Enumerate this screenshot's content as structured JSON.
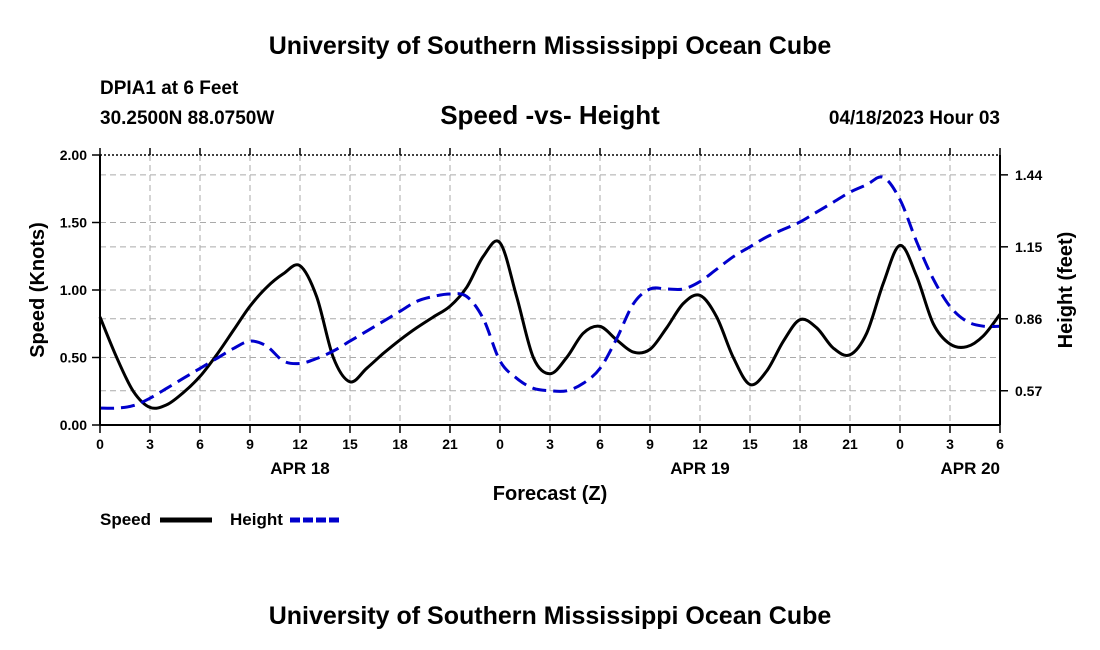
{
  "header": {
    "title": "University of Southern Mississippi Ocean Cube",
    "station": "DPIA1 at 6 Feet",
    "coords": "30.2500N  88.0750W",
    "subtitle": "Speed -vs- Height",
    "datetime": "04/18/2023 Hour 03"
  },
  "footer": {
    "title": "University of Southern Mississippi Ocean Cube"
  },
  "legend": {
    "speed_label": "Speed",
    "height_label": "Height"
  },
  "colors": {
    "speed": "#000000",
    "height": "#0000cc",
    "grid": "#aaaaaa"
  },
  "chart_data": {
    "type": "line",
    "title": "Speed -vs- Height",
    "xlabel": "Forecast (Z)",
    "ylabel": "Speed (Knots)",
    "y2label": "Height (feet)",
    "xlim": [
      0,
      54
    ],
    "x_ticks": [
      0,
      3,
      6,
      9,
      12,
      15,
      18,
      21,
      24,
      27,
      30,
      33,
      36,
      39,
      42,
      45,
      48,
      51,
      54
    ],
    "x_tick_labels": [
      "0",
      "3",
      "6",
      "9",
      "12",
      "15",
      "18",
      "21",
      "0",
      "3",
      "6",
      "9",
      "12",
      "15",
      "18",
      "21",
      "0",
      "3",
      "6"
    ],
    "date_labels": [
      {
        "x": 12,
        "label": "APR 18"
      },
      {
        "x": 36,
        "label": "APR 19"
      },
      {
        "x": 54,
        "label": "APR 20"
      }
    ],
    "ylim": [
      0,
      2.0
    ],
    "y_ticks": [
      0,
      0.5,
      1.0,
      1.5,
      2.0
    ],
    "y_tick_labels": [
      "0.00",
      "0.50",
      "1.00",
      "1.50",
      "2.00"
    ],
    "y2lim": [
      0.432,
      1.52
    ],
    "y2_ticks": [
      0.57,
      0.86,
      1.15,
      1.44
    ],
    "y2_tick_labels": [
      "0.57",
      "0.86",
      "1.15",
      "1.44"
    ],
    "series": [
      {
        "name": "Speed",
        "axis": "left",
        "style": "solid",
        "x": [
          0,
          1,
          2,
          3,
          4,
          5,
          6,
          7,
          8,
          9,
          10,
          11,
          12,
          13,
          14,
          15,
          16,
          17,
          18,
          19,
          20,
          21,
          22,
          23,
          24,
          25,
          26,
          27,
          28,
          29,
          30,
          31,
          32,
          33,
          34,
          35,
          36,
          37,
          38,
          39,
          40,
          41,
          42,
          43,
          44,
          45,
          46,
          47,
          48,
          49,
          50,
          51,
          52,
          53,
          54
        ],
        "values": [
          0.8,
          0.5,
          0.25,
          0.13,
          0.15,
          0.24,
          0.36,
          0.52,
          0.7,
          0.88,
          1.02,
          1.12,
          1.18,
          0.95,
          0.5,
          0.32,
          0.42,
          0.53,
          0.63,
          0.72,
          0.8,
          0.88,
          1.02,
          1.25,
          1.35,
          0.95,
          0.5,
          0.38,
          0.5,
          0.68,
          0.73,
          0.63,
          0.54,
          0.56,
          0.72,
          0.9,
          0.96,
          0.8,
          0.5,
          0.3,
          0.4,
          0.62,
          0.78,
          0.72,
          0.57,
          0.52,
          0.68,
          1.05,
          1.33,
          1.1,
          0.75,
          0.6,
          0.58,
          0.66,
          0.82
        ]
      },
      {
        "name": "Height",
        "axis": "right",
        "style": "dashed",
        "x": [
          0,
          1,
          2,
          3,
          4,
          5,
          6,
          7,
          8,
          9,
          10,
          11,
          12,
          13,
          14,
          15,
          16,
          17,
          18,
          19,
          20,
          21,
          22,
          23,
          24,
          25,
          26,
          27,
          28,
          29,
          30,
          31,
          32,
          33,
          34,
          35,
          36,
          37,
          38,
          39,
          40,
          41,
          42,
          43,
          44,
          45,
          46,
          47,
          48,
          49,
          50,
          51,
          52,
          53,
          54
        ],
        "values": [
          0.5,
          0.5,
          0.51,
          0.54,
          0.58,
          0.62,
          0.66,
          0.7,
          0.74,
          0.77,
          0.75,
          0.69,
          0.68,
          0.7,
          0.73,
          0.77,
          0.81,
          0.85,
          0.89,
          0.93,
          0.95,
          0.96,
          0.95,
          0.86,
          0.69,
          0.62,
          0.58,
          0.57,
          0.57,
          0.6,
          0.66,
          0.78,
          0.92,
          0.98,
          0.98,
          0.98,
          1.01,
          1.06,
          1.11,
          1.15,
          1.19,
          1.22,
          1.25,
          1.29,
          1.33,
          1.37,
          1.4,
          1.43,
          1.34,
          1.17,
          1.02,
          0.91,
          0.85,
          0.83,
          0.83
        ]
      }
    ]
  }
}
